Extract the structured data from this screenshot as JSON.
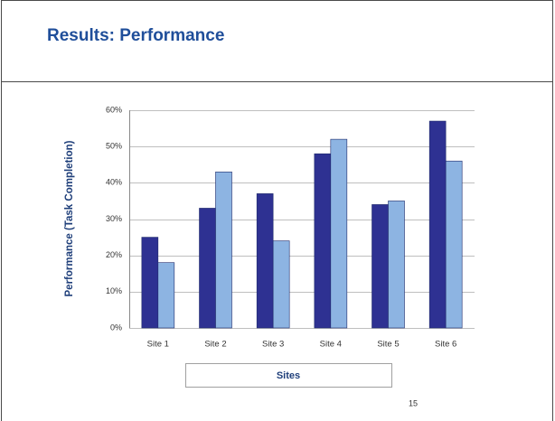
{
  "title": "Results: Performance",
  "page_number": "15",
  "chart_data": {
    "type": "bar",
    "ylabel": "Performance (Task Completion)",
    "xlabel": "Sites",
    "categories": [
      "Site 1",
      "Site 2",
      "Site 3",
      "Site 4",
      "Site 5",
      "Site 6"
    ],
    "series": [
      {
        "color": "#2e3192",
        "values": [
          25,
          33,
          37,
          48,
          34,
          57
        ]
      },
      {
        "color": "#8db4e2",
        "values": [
          18,
          43,
          24,
          52,
          35,
          46
        ]
      }
    ],
    "ylim": [
      0,
      60
    ],
    "yticks": [
      {
        "value": 0,
        "label": "0%"
      },
      {
        "value": 10,
        "label": "10%"
      },
      {
        "value": 20,
        "label": "20%"
      },
      {
        "value": 30,
        "label": "30%"
      },
      {
        "value": 40,
        "label": "40%"
      },
      {
        "value": 50,
        "label": "50%"
      },
      {
        "value": 60,
        "label": "60%"
      }
    ],
    "grid": true
  }
}
